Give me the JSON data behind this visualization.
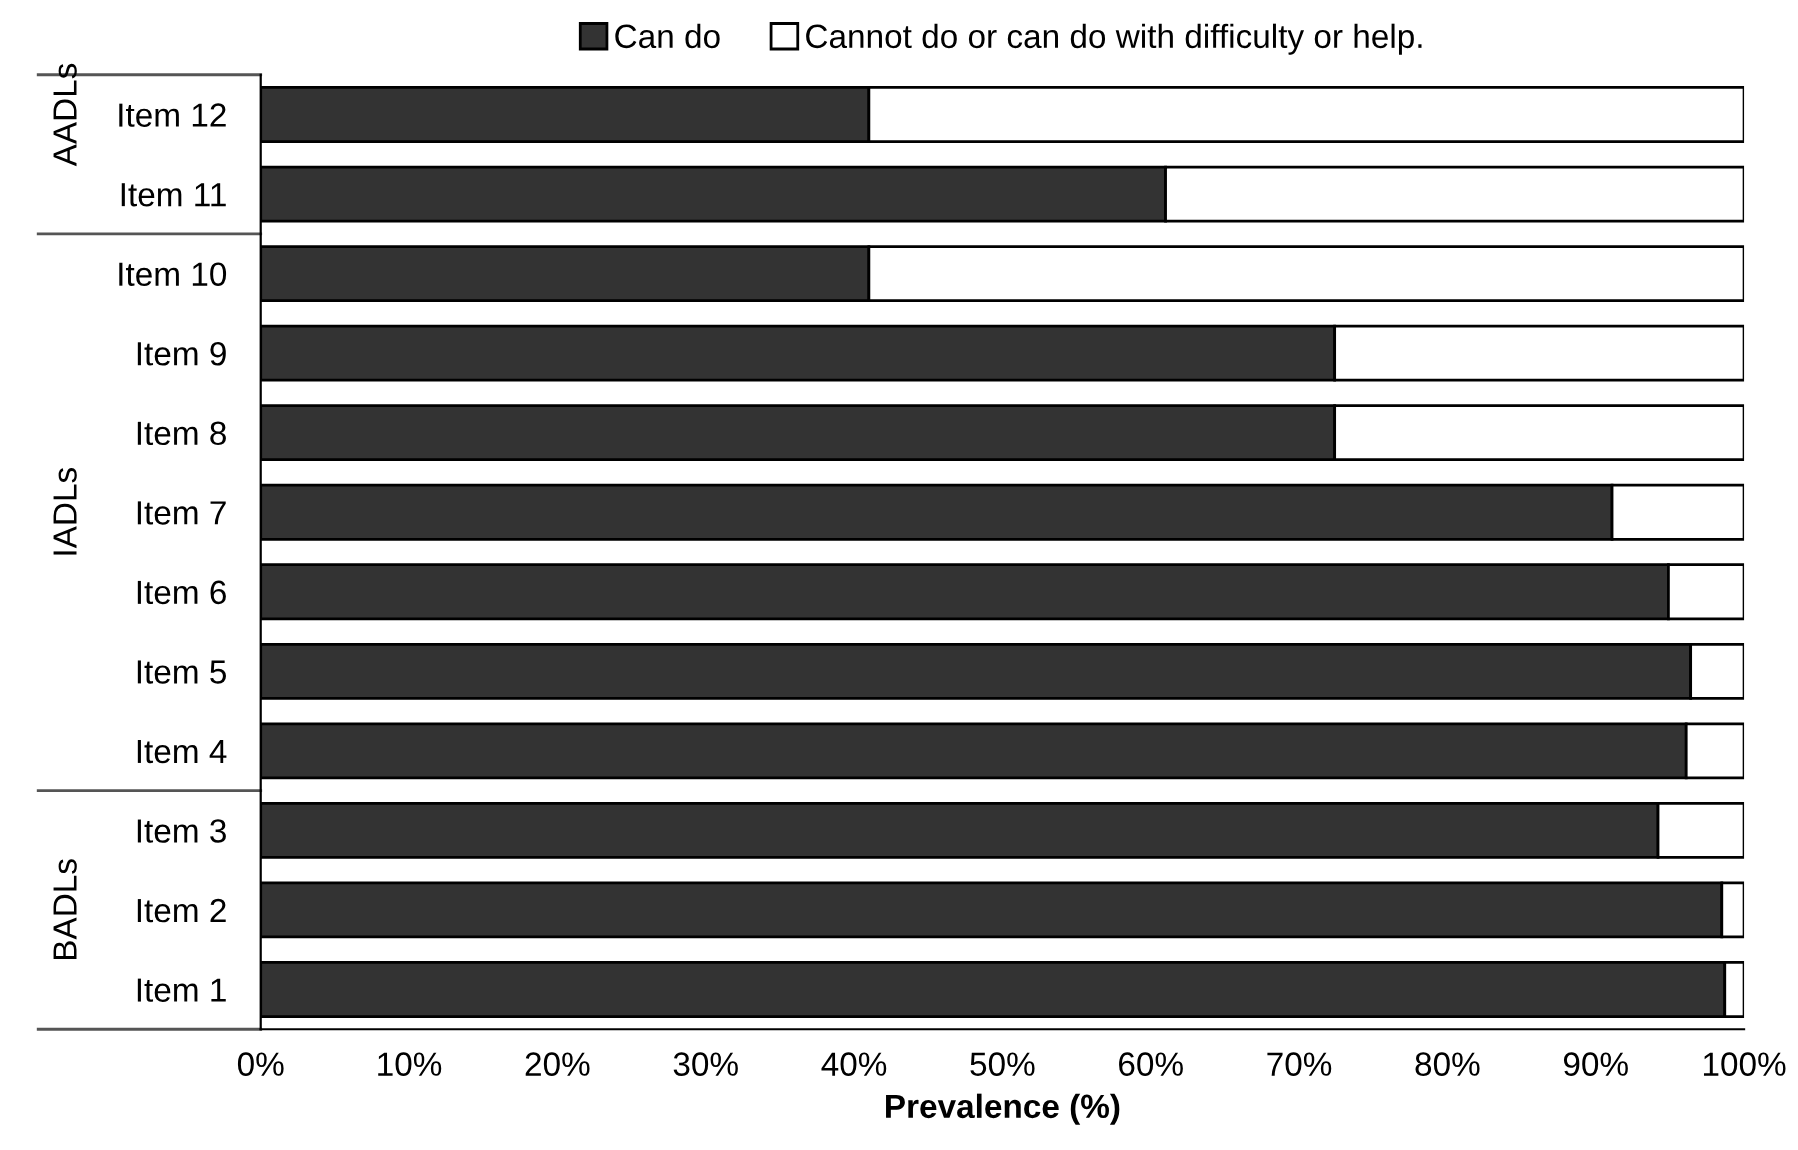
{
  "chart_data": {
    "type": "bar",
    "orientation": "horizontal",
    "stacked": true,
    "xlabel": "Prevalence (%)",
    "categories": [
      "Item 12",
      "Item 11",
      "Item 10",
      "Item 9",
      "Item 8",
      "Item 7",
      "Item 6",
      "Item 5",
      "Item 4",
      "Item 3",
      "Item 2",
      "Item 1"
    ],
    "series": [
      {
        "name": "Can do",
        "color": "#333333",
        "values": [
          41,
          61,
          41,
          72.4,
          72.4,
          91.1,
          94.9,
          96.4,
          96.1,
          94.2,
          98.5,
          98.7
        ]
      },
      {
        "name": "Cannot do or can do with difficulty or help.",
        "color": "#ffffff",
        "values": [
          59,
          39,
          59,
          27.6,
          27.6,
          8.9,
          5.1,
          3.6,
          3.9,
          5.8,
          1.5,
          1.3
        ]
      }
    ],
    "xlim": [
      0,
      100
    ],
    "xticks": [
      {
        "value": 0,
        "label": "0%"
      },
      {
        "value": 10,
        "label": "10%"
      },
      {
        "value": 20,
        "label": "20%"
      },
      {
        "value": 30,
        "label": "30%"
      },
      {
        "value": 40,
        "label": "40%"
      },
      {
        "value": 50,
        "label": "50%"
      },
      {
        "value": 60,
        "label": "60%"
      },
      {
        "value": 70,
        "label": "70%"
      },
      {
        "value": 80,
        "label": "80%"
      },
      {
        "value": 90,
        "label": "90%"
      },
      {
        "value": 100,
        "label": "100%"
      }
    ],
    "annotations": [
      "BADLs",
      "IADLs",
      "AADLs"
    ],
    "legend": "top",
    "grid": false
  }
}
